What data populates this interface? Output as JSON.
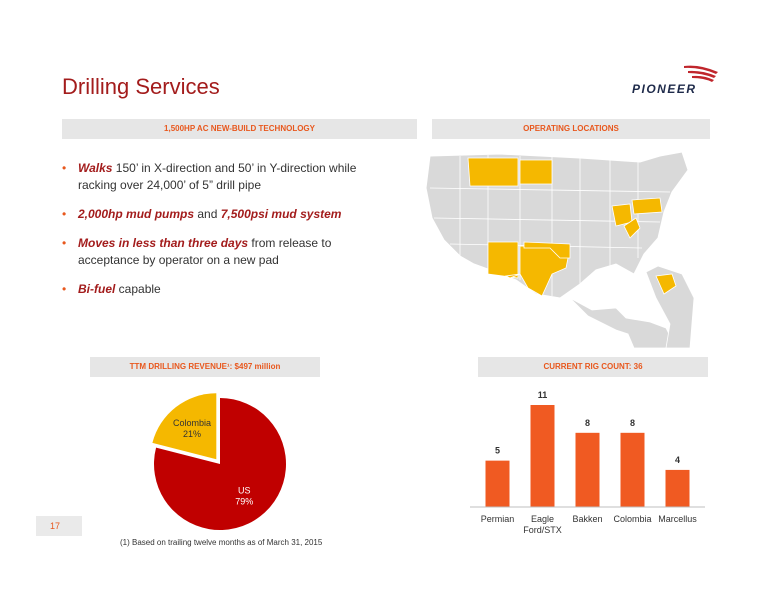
{
  "title": "Drilling Services",
  "logo_text": "PIONEER",
  "headers": {
    "tech": "1,500HP AC NEW-BUILD TECHNOLOGY",
    "locations": "OPERATING LOCATIONS",
    "revenue": "TTM DRILLING REVENUE¹: $497 million",
    "rigcount": "CURRENT RIG COUNT: 36"
  },
  "bullets": [
    {
      "emph": "Walks",
      "rest": " 150’ in X-direction and 50’ in Y-direction while racking over 24,000’ of 5” drill pipe"
    },
    {
      "emph": "2,000hp mud pumps",
      "mid": " and ",
      "emph2": "7,500psi mud system",
      "rest": ""
    },
    {
      "emph": "Moves in less than three days",
      "rest": " from release to acceptance by operator on a new pad"
    },
    {
      "emph": "Bi-fuel",
      "rest": " capable"
    }
  ],
  "map": {
    "highlight_color": "#f5b800",
    "base_color": "#d9d9d9"
  },
  "page_number": "17",
  "footnote": "(1)    Based on trailing twelve months as of March 31, 2015",
  "chart_data": [
    {
      "type": "pie",
      "slices": [
        {
          "label": "US",
          "value": 79,
          "value_label": "79%",
          "color": "#c00000"
        },
        {
          "label": "Colombia",
          "value": 21,
          "value_label": "21%",
          "color": "#f5b800"
        }
      ]
    },
    {
      "type": "bar",
      "categories": [
        "Permian",
        "Eagle Ford/STX",
        "Bakken",
        "Colombia",
        "Marcellus"
      ],
      "values": [
        5,
        11,
        8,
        8,
        4
      ],
      "color": "#f05a22"
    }
  ]
}
